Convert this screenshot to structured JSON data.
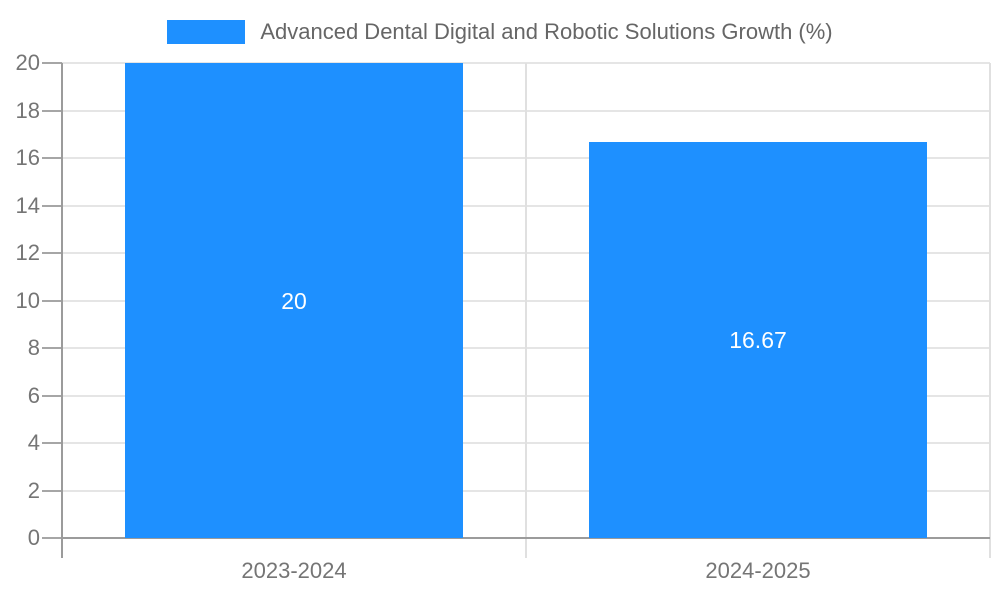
{
  "legend": {
    "label": "Advanced Dental Digital and Robotic Solutions Growth (%)"
  },
  "colors": {
    "bar": "#1e90ff",
    "grid_line": "#e5e5e5",
    "divider_line": "#e0e0e0",
    "axis_line": "#9b9b9b",
    "tick": "#a6a6a6",
    "axis_label": "#757575",
    "legend_text": "#666666",
    "value_label": "#ffffff",
    "background": "#ffffff"
  },
  "chart_data": {
    "type": "bar",
    "title": "Advanced Dental Digital and Robotic Solutions Growth (%)",
    "categories": [
      "2023-2024",
      "2024-2025"
    ],
    "series": [
      {
        "name": "Advanced Dental Digital and Robotic Solutions Growth (%)",
        "values": [
          20,
          16.67
        ]
      }
    ],
    "value_labels": [
      "20",
      "16.67"
    ],
    "xlabel": "",
    "ylabel": "",
    "ylim": [
      0,
      20
    ],
    "yticks": [
      0,
      2,
      4,
      6,
      8,
      10,
      12,
      14,
      16,
      18,
      20
    ],
    "grid": true,
    "legend_position": "top-center",
    "value_label_position": "inside-center"
  }
}
